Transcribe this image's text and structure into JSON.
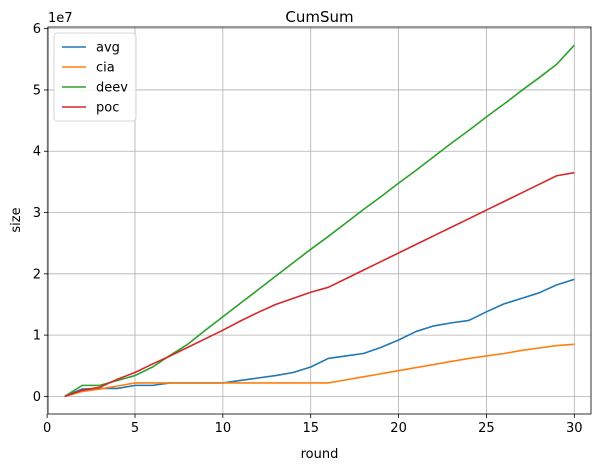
{
  "chart_data": {
    "type": "line",
    "title": "CumSum",
    "xlabel": "round",
    "ylabel": "size",
    "y_offset_label": "1e7",
    "xlim": [
      0.05,
      30.95
    ],
    "ylim": [
      -2870000,
      60270000
    ],
    "xticks": [
      0,
      5,
      10,
      15,
      20,
      25,
      30
    ],
    "yticks": [
      0,
      10000000,
      20000000,
      30000000,
      40000000,
      50000000,
      60000000
    ],
    "ytick_labels": [
      "0",
      "1",
      "2",
      "3",
      "4",
      "5",
      "6"
    ],
    "grid": true,
    "legend_position": "top-left",
    "x": [
      1,
      2,
      3,
      4,
      5,
      6,
      7,
      8,
      9,
      10,
      11,
      12,
      13,
      14,
      15,
      16,
      17,
      18,
      19,
      20,
      21,
      22,
      23,
      24,
      25,
      26,
      27,
      28,
      29,
      30
    ],
    "series": [
      {
        "name": "avg",
        "color": "#1f77b4",
        "values": [
          0,
          1200000,
          1300000,
          1300000,
          1800000,
          1800000,
          2200000,
          2200000,
          2200000,
          2200000,
          2600000,
          3000000,
          3400000,
          3900000,
          4800000,
          6200000,
          6600000,
          7000000,
          8000000,
          9200000,
          10600000,
          11500000,
          12000000,
          12400000,
          13800000,
          15100000,
          16000000,
          16900000,
          18200000,
          19100000
        ]
      },
      {
        "name": "cia",
        "color": "#ff7f0e",
        "values": [
          0,
          800000,
          1200000,
          1700000,
          2200000,
          2200000,
          2200000,
          2200000,
          2200000,
          2200000,
          2200000,
          2200000,
          2200000,
          2200000,
          2200000,
          2200000,
          2700000,
          3200000,
          3700000,
          4200000,
          4700000,
          5200000,
          5700000,
          6200000,
          6600000,
          7000000,
          7500000,
          7900000,
          8300000,
          8500000
        ]
      },
      {
        "name": "deev",
        "color": "#2ca02c",
        "values": [
          0,
          1800000,
          1800000,
          2600000,
          3400000,
          4800000,
          6700000,
          8500000,
          10800000,
          13000000,
          15200000,
          17400000,
          19600000,
          21800000,
          24000000,
          26100000,
          28300000,
          30500000,
          32600000,
          34800000,
          36900000,
          39100000,
          41300000,
          43400000,
          45600000,
          47700000,
          49900000,
          52000000,
          54200000,
          57300000
        ]
      },
      {
        "name": "poc",
        "color": "#d62728",
        "values": [
          0,
          1000000,
          1500000,
          2800000,
          3900000,
          5300000,
          6600000,
          8000000,
          9400000,
          10800000,
          12300000,
          13700000,
          15000000,
          16000000,
          17000000,
          17800000,
          19200000,
          20600000,
          22000000,
          23400000,
          24800000,
          26200000,
          27600000,
          29000000,
          30400000,
          31800000,
          33200000,
          34600000,
          36000000,
          36500000
        ]
      }
    ]
  }
}
